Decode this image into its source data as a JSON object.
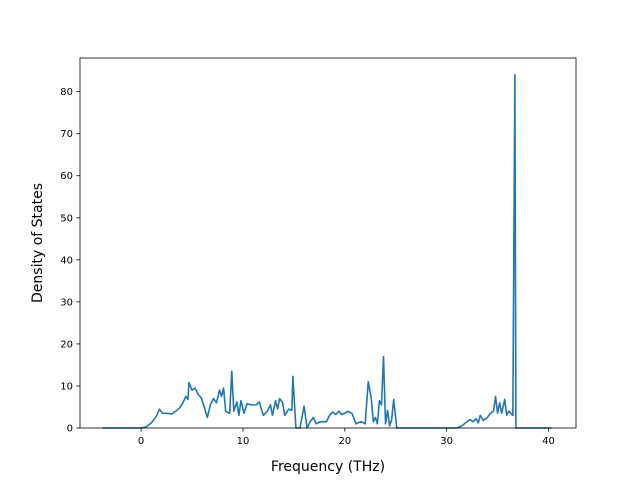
{
  "chart_data": {
    "type": "line",
    "title": "",
    "xlabel": "Frequency (THz)",
    "ylabel": "Density of States",
    "xlim": [
      -6,
      42.7
    ],
    "ylim": [
      0,
      88
    ],
    "xticks": [
      0,
      10,
      20,
      30,
      40
    ],
    "yticks": [
      0,
      10,
      20,
      30,
      40,
      50,
      60,
      70,
      80
    ],
    "grid": false,
    "legend": "none",
    "colors": {
      "line": "#1f77b4",
      "axes": "#000000",
      "background": "#ffffff"
    },
    "series": [
      {
        "values_xy": [
          [
            -3.8,
            0
          ],
          [
            -1.0,
            0
          ],
          [
            0.0,
            0
          ],
          [
            0.5,
            0.3
          ],
          [
            1.0,
            1.2
          ],
          [
            1.5,
            2.8
          ],
          [
            1.8,
            4.5
          ],
          [
            2.1,
            3.5
          ],
          [
            2.6,
            3.5
          ],
          [
            3.0,
            3.3
          ],
          [
            3.4,
            4.0
          ],
          [
            3.8,
            4.8
          ],
          [
            4.1,
            6.0
          ],
          [
            4.4,
            7.5
          ],
          [
            4.6,
            6.8
          ],
          [
            4.7,
            10.8
          ],
          [
            5.0,
            9.0
          ],
          [
            5.3,
            9.5
          ],
          [
            5.6,
            8.0
          ],
          [
            5.9,
            7.2
          ],
          [
            6.2,
            5.0
          ],
          [
            6.5,
            2.5
          ],
          [
            6.8,
            5.5
          ],
          [
            7.1,
            7.0
          ],
          [
            7.4,
            6.0
          ],
          [
            7.7,
            9.0
          ],
          [
            7.9,
            7.5
          ],
          [
            8.1,
            9.5
          ],
          [
            8.3,
            4.0
          ],
          [
            8.7,
            3.5
          ],
          [
            8.9,
            13.5
          ],
          [
            9.1,
            4.0
          ],
          [
            9.4,
            6.2
          ],
          [
            9.6,
            3.0
          ],
          [
            9.8,
            6.5
          ],
          [
            10.1,
            3.5
          ],
          [
            10.4,
            5.8
          ],
          [
            10.8,
            5.5
          ],
          [
            11.3,
            5.5
          ],
          [
            11.6,
            6.2
          ],
          [
            12.0,
            3.0
          ],
          [
            12.4,
            4.0
          ],
          [
            12.7,
            5.5
          ],
          [
            12.9,
            3.0
          ],
          [
            13.2,
            6.5
          ],
          [
            13.4,
            4.5
          ],
          [
            13.6,
            7.0
          ],
          [
            13.9,
            6.0
          ],
          [
            14.1,
            3.0
          ],
          [
            14.5,
            4.5
          ],
          [
            14.8,
            4.2
          ],
          [
            14.9,
            12.3
          ],
          [
            15.2,
            0
          ],
          [
            15.6,
            0
          ],
          [
            16.0,
            5.2
          ],
          [
            16.3,
            0
          ],
          [
            16.6,
            1.5
          ],
          [
            16.9,
            2.5
          ],
          [
            17.2,
            1.0
          ],
          [
            17.6,
            1.5
          ],
          [
            18.2,
            1.5
          ],
          [
            18.5,
            3.0
          ],
          [
            18.8,
            3.8
          ],
          [
            19.1,
            3.2
          ],
          [
            19.4,
            4.0
          ],
          [
            19.7,
            3.2
          ],
          [
            20.0,
            3.5
          ],
          [
            20.3,
            4.0
          ],
          [
            20.7,
            3.5
          ],
          [
            21.1,
            1.0
          ],
          [
            21.6,
            1.5
          ],
          [
            22.0,
            1.0
          ],
          [
            22.3,
            11.0
          ],
          [
            22.6,
            7.0
          ],
          [
            22.8,
            1.5
          ],
          [
            23.0,
            2.5
          ],
          [
            23.2,
            1.0
          ],
          [
            23.4,
            6.5
          ],
          [
            23.6,
            5.5
          ],
          [
            23.8,
            17.0
          ],
          [
            24.0,
            1.0
          ],
          [
            24.2,
            4.2
          ],
          [
            24.4,
            0.5
          ],
          [
            24.6,
            2.0
          ],
          [
            24.8,
            6.8
          ],
          [
            25.1,
            0
          ],
          [
            26.0,
            0
          ],
          [
            28.0,
            0
          ],
          [
            30.0,
            0
          ],
          [
            31.0,
            0
          ],
          [
            31.5,
            0.5
          ],
          [
            32.0,
            1.5
          ],
          [
            32.3,
            2.0
          ],
          [
            32.6,
            1.5
          ],
          [
            32.9,
            2.2
          ],
          [
            33.1,
            1.2
          ],
          [
            33.3,
            3.0
          ],
          [
            33.6,
            1.8
          ],
          [
            34.0,
            2.5
          ],
          [
            34.3,
            3.5
          ],
          [
            34.6,
            4.0
          ],
          [
            34.8,
            7.5
          ],
          [
            35.0,
            3.5
          ],
          [
            35.2,
            6.0
          ],
          [
            35.4,
            3.5
          ],
          [
            35.7,
            6.8
          ],
          [
            35.9,
            3.0
          ],
          [
            36.1,
            4.0
          ],
          [
            36.3,
            3.5
          ],
          [
            36.5,
            3.0
          ],
          [
            36.7,
            84.0
          ],
          [
            36.8,
            0
          ],
          [
            37.5,
            0
          ],
          [
            39.0,
            0
          ],
          [
            40.3,
            0
          ]
        ]
      }
    ]
  }
}
